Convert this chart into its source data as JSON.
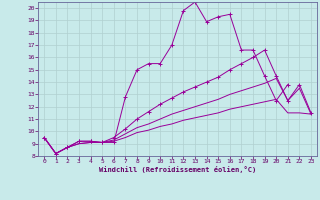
{
  "xlabel": "Windchill (Refroidissement éolien,°C)",
  "xlim": [
    -0.5,
    23.5
  ],
  "ylim": [
    8,
    20.5
  ],
  "xticks": [
    0,
    1,
    2,
    3,
    4,
    5,
    6,
    7,
    8,
    9,
    10,
    11,
    12,
    13,
    14,
    15,
    16,
    17,
    18,
    19,
    20,
    21,
    22,
    23
  ],
  "yticks": [
    8,
    9,
    10,
    11,
    12,
    13,
    14,
    15,
    16,
    17,
    18,
    19,
    20
  ],
  "background_color": "#c8eaea",
  "grid_color": "#b0d0d0",
  "line_color": "#990099",
  "lines": [
    {
      "x": [
        0,
        1,
        2,
        3,
        4,
        5,
        6,
        7,
        8,
        9,
        10,
        11,
        12,
        13,
        14,
        15,
        16,
        17,
        18,
        19,
        20,
        21
      ],
      "y": [
        9.5,
        8.2,
        8.7,
        9.2,
        9.2,
        9.1,
        9.1,
        12.8,
        15.0,
        15.5,
        15.5,
        17.0,
        19.8,
        20.5,
        18.9,
        19.3,
        19.5,
        16.6,
        16.6,
        14.5,
        12.5,
        13.8
      ],
      "marker": true
    },
    {
      "x": [
        0,
        1,
        2,
        3,
        4,
        5,
        6,
        7,
        8,
        9,
        10,
        11,
        12,
        13,
        14,
        15,
        16,
        17,
        18,
        19,
        20,
        21,
        22,
        23
      ],
      "y": [
        9.5,
        8.2,
        8.7,
        9.2,
        9.2,
        9.1,
        9.5,
        10.2,
        11.0,
        11.6,
        12.2,
        12.7,
        13.2,
        13.6,
        14.0,
        14.4,
        15.0,
        15.5,
        16.0,
        16.6,
        14.5,
        12.5,
        13.8,
        11.5
      ],
      "marker": true
    },
    {
      "x": [
        0,
        1,
        2,
        3,
        4,
        5,
        6,
        7,
        8,
        9,
        10,
        11,
        12,
        13,
        14,
        15,
        16,
        17,
        18,
        19,
        20,
        21,
        22,
        23
      ],
      "y": [
        9.5,
        8.2,
        8.7,
        9.0,
        9.1,
        9.1,
        9.3,
        9.8,
        10.3,
        10.6,
        11.0,
        11.4,
        11.7,
        12.0,
        12.3,
        12.6,
        13.0,
        13.3,
        13.6,
        13.9,
        14.3,
        12.5,
        13.5,
        11.4
      ],
      "marker": false
    },
    {
      "x": [
        0,
        1,
        2,
        3,
        4,
        5,
        6,
        7,
        8,
        9,
        10,
        11,
        12,
        13,
        14,
        15,
        16,
        17,
        18,
        19,
        20,
        21,
        22,
        23
      ],
      "y": [
        9.5,
        8.2,
        8.7,
        9.0,
        9.1,
        9.1,
        9.2,
        9.5,
        9.9,
        10.1,
        10.4,
        10.6,
        10.9,
        11.1,
        11.3,
        11.5,
        11.8,
        12.0,
        12.2,
        12.4,
        12.6,
        11.5,
        11.5,
        11.4
      ],
      "marker": false
    }
  ]
}
